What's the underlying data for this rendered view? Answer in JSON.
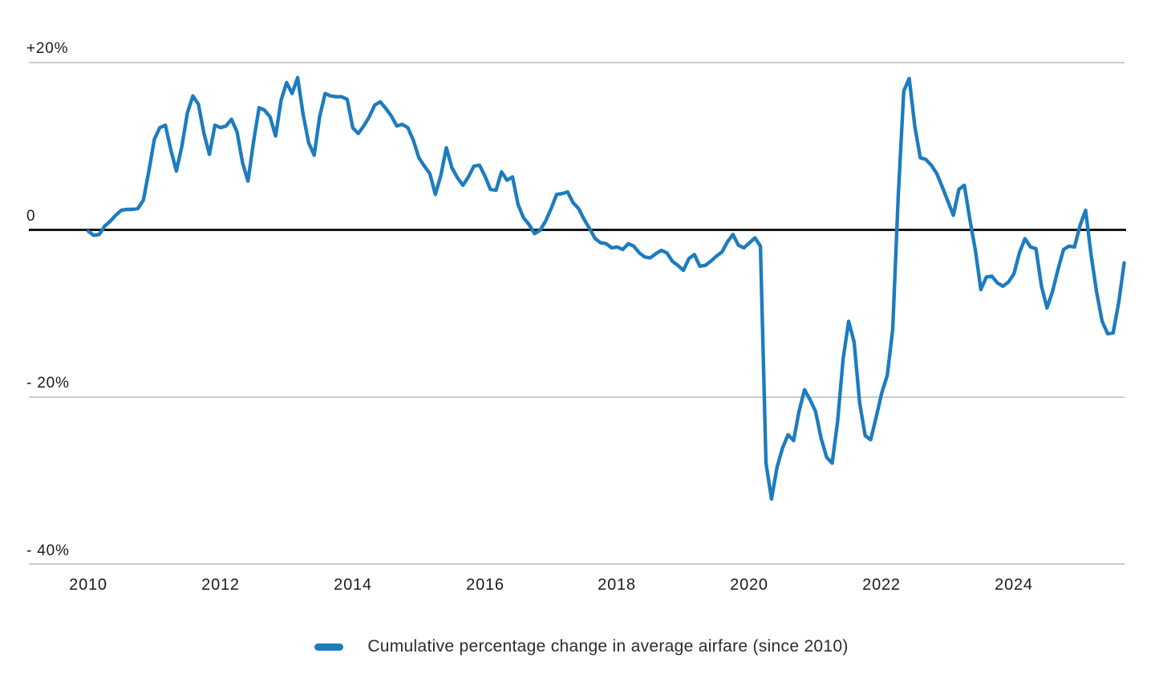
{
  "page": {
    "background": "#ffffff",
    "accent_blue": "#1d7cbf",
    "gridline_color": "#cccccc",
    "zero_line_color": "#161616"
  },
  "axes": {
    "y_ticks": [
      {
        "label": "+20%",
        "value": 20
      },
      {
        "label": "0",
        "value": 0
      },
      {
        "label": "- 20%",
        "value": -20
      },
      {
        "label": "- 40%",
        "value": -40
      }
    ],
    "x_ticks": [
      {
        "label": "2010"
      },
      {
        "label": "2012"
      },
      {
        "label": "2014"
      },
      {
        "label": "2016"
      },
      {
        "label": "2018"
      },
      {
        "label": "2020"
      },
      {
        "label": "2022"
      },
      {
        "label": "2024"
      }
    ]
  },
  "legend": {
    "label": "Cumulative percentage change in average airfare (since 2010)",
    "swatch_color": "#1d7cbf"
  },
  "chart_data": {
    "type": "line",
    "title": "",
    "xlabel": "",
    "ylabel": "Cumulative percentage change in average airfare",
    "unit": "percent",
    "ylim": [
      -44,
      26
    ],
    "x_tick_labels": [
      "2010",
      "2012",
      "2014",
      "2016",
      "2018",
      "2020",
      "2022",
      "2024"
    ],
    "y_tick_labels": [
      "+20%",
      "0",
      "- 20%",
      "- 40%"
    ],
    "gridlines_at": [
      20,
      -20,
      -40
    ],
    "zero_line": true,
    "grid": "horizontal-only",
    "legend_position": "bottom-center",
    "series": [
      {
        "name": "Cumulative percentage change in average airfare (since 2010)",
        "color": "#1d7cbf",
        "frequency": "monthly",
        "x_start": "2010-01",
        "x_end": "2025-09",
        "values": [
          -0.2,
          -0.7,
          -0.6,
          0.4,
          1.0,
          1.7,
          2.3,
          2.4,
          2.4,
          2.5,
          3.5,
          7.0,
          10.8,
          12.2,
          12.5,
          9.5,
          7.0,
          10.0,
          14.0,
          16.0,
          15.0,
          11.5,
          9.0,
          12.5,
          12.2,
          12.4,
          13.2,
          11.7,
          8.0,
          5.8,
          10.5,
          14.6,
          14.3,
          13.5,
          11.2,
          15.5,
          17.6,
          16.3,
          18.2,
          13.8,
          10.4,
          8.9,
          13.5,
          16.3,
          16.0,
          15.9,
          15.9,
          15.6,
          12.2,
          11.5,
          12.4,
          13.5,
          14.9,
          15.3,
          14.5,
          13.6,
          12.4,
          12.6,
          12.2,
          10.7,
          8.6,
          7.6,
          6.7,
          4.2,
          6.5,
          9.8,
          7.4,
          6.2,
          5.3,
          6.3,
          7.6,
          7.7,
          6.4,
          4.8,
          4.7,
          6.9,
          5.9,
          6.3,
          3.0,
          1.4,
          0.6,
          -0.5,
          -0.1,
          1.0,
          2.5,
          4.2,
          4.3,
          4.5,
          3.2,
          2.5,
          1.2,
          0.1,
          -1.1,
          -1.6,
          -1.7,
          -2.2,
          -2.1,
          -2.4,
          -1.7,
          -2.0,
          -2.8,
          -3.3,
          -3.4,
          -2.9,
          -2.5,
          -2.8,
          -3.8,
          -4.3,
          -4.9,
          -3.5,
          -3.0,
          -4.4,
          -4.3,
          -3.8,
          -3.2,
          -2.7,
          -1.5,
          -0.6,
          -1.9,
          -2.2,
          -1.6,
          -1.0,
          -2.0,
          -28.0,
          -32.3,
          -28.5,
          -26.2,
          -24.6,
          -25.3,
          -21.8,
          -19.2,
          -20.4,
          -21.8,
          -25.0,
          -27.3,
          -28.0,
          -23.0,
          -15.5,
          -11.0,
          -13.5,
          -20.8,
          -24.7,
          -25.2,
          -22.5,
          -19.6,
          -17.5,
          -12.0,
          4.0,
          16.6,
          18.1,
          12.4,
          8.6,
          8.4,
          7.7,
          6.7,
          5.1,
          3.4,
          1.7,
          4.8,
          5.3,
          1.2,
          -2.5,
          -7.2,
          -5.7,
          -5.6,
          -6.4,
          -6.8,
          -6.3,
          -5.3,
          -2.8,
          -1.1,
          -2.1,
          -2.3,
          -6.8,
          -9.4,
          -7.4,
          -4.8,
          -2.4,
          -2.0,
          -2.1,
          0.5,
          2.3,
          -3.0,
          -7.5,
          -11.0,
          -12.5,
          -12.4,
          -8.8,
          -4.0
        ]
      }
    ]
  }
}
